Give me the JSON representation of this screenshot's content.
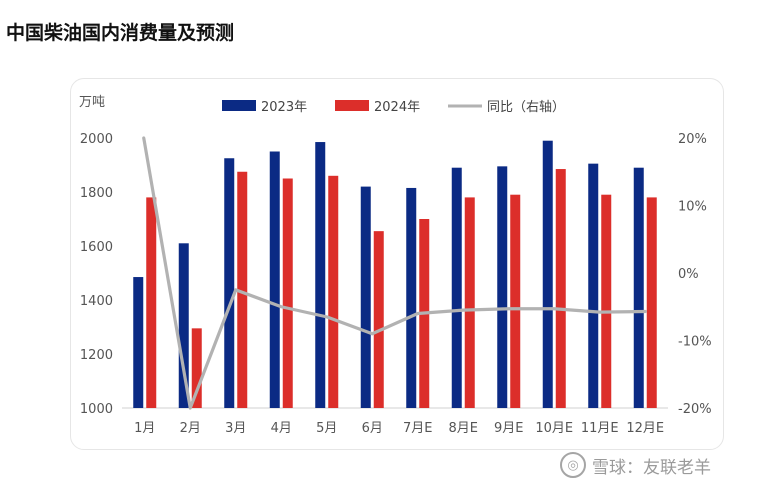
{
  "page": {
    "title": "中国柴油国内消费量及预测"
  },
  "watermark": {
    "text": "雪球：友联老羊",
    "logo_icon": "xueqiu-logo-icon"
  },
  "chart_data": {
    "type": "bar",
    "y_unit_label": "万吨",
    "categories": [
      "1月",
      "2月",
      "3月",
      "4月",
      "5月",
      "6月",
      "7月E",
      "8月E",
      "9月E",
      "10月E",
      "11月E",
      "12月E"
    ],
    "series": [
      {
        "name": "2023年",
        "kind": "bar",
        "axis": "left",
        "color": "#0b2a84",
        "values": [
          1485,
          1610,
          1925,
          1950,
          1985,
          1820,
          1815,
          1890,
          1895,
          1990,
          1905,
          1890
        ]
      },
      {
        "name": "2024年",
        "kind": "bar",
        "axis": "left",
        "color": "#dc2e2a",
        "values": [
          1780,
          1295,
          1875,
          1850,
          1860,
          1655,
          1700,
          1780,
          1790,
          1885,
          1790,
          1780
        ]
      },
      {
        "name": "同比（右轴）",
        "kind": "line",
        "axis": "right",
        "color": "#b2b2b2",
        "values": [
          20,
          -20,
          -2.5,
          -5,
          -6.5,
          -9,
          -6,
          -5.5,
          -5.3,
          -5.3,
          -5.8,
          -5.7
        ]
      }
    ],
    "left_axis": {
      "ylim": [
        1000,
        2000
      ],
      "ticks": [
        "1000",
        "1200",
        "1400",
        "1600",
        "1800",
        "2000"
      ],
      "tick_values": [
        1000,
        1200,
        1400,
        1600,
        1800,
        2000
      ]
    },
    "right_axis": {
      "ylim": [
        -20,
        20
      ],
      "ticks": [
        "-20%",
        "-10%",
        "0%",
        "10%",
        "20%"
      ],
      "tick_values": [
        -20,
        -10,
        0,
        10,
        20
      ]
    },
    "grid": false,
    "legend": "top-center"
  }
}
